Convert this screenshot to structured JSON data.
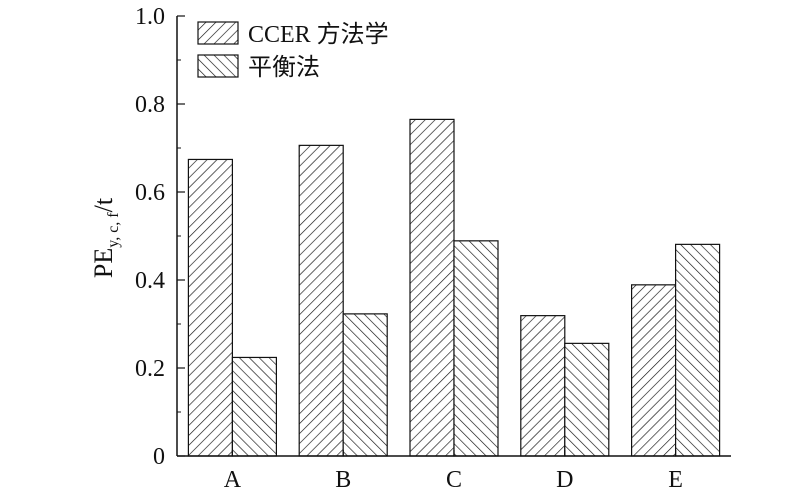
{
  "chart_data": {
    "type": "bar",
    "categories": [
      "A",
      "B",
      "C",
      "D",
      "E"
    ],
    "series": [
      {
        "name": "CCER 方法学",
        "values": [
          0.674,
          0.706,
          0.765,
          0.319,
          0.389
        ],
        "pattern": "hatch-forward"
      },
      {
        "name": "平衡法",
        "values": [
          0.224,
          0.323,
          0.489,
          0.256,
          0.481
        ],
        "pattern": "hatch-back"
      }
    ],
    "ylabel": {
      "main": "PE",
      "sub": "y, c, f",
      "unit": "/t"
    },
    "ylim": [
      0,
      1.0
    ],
    "yticks": [
      "0",
      "0.2",
      "0.4",
      "0.6",
      "0.8",
      "1.0"
    ],
    "grid": false,
    "legend_position": "top-left",
    "colors": {
      "stroke": "#111111",
      "background": "#ffffff"
    }
  }
}
